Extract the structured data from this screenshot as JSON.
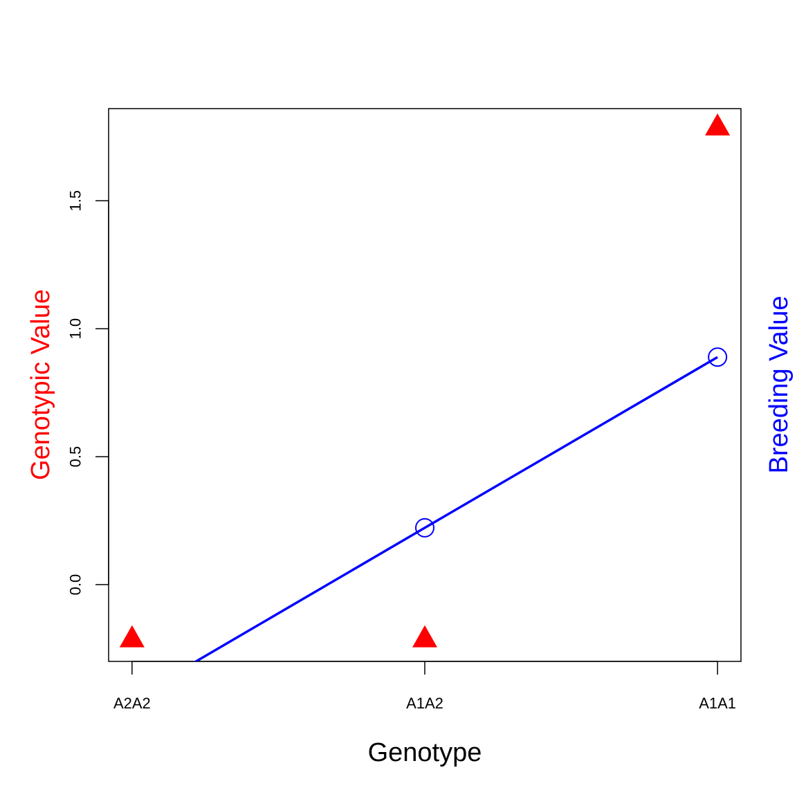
{
  "chart_data": {
    "type": "scatter",
    "xlabel": "Genotype",
    "ylabel_left": "Genotypic Value",
    "ylabel_right": "Breeding Value",
    "categories": [
      "A2A2",
      "A1A2",
      "A1A1"
    ],
    "x_range": [
      0.92,
      3.08
    ],
    "ylim": [
      -0.3,
      1.86
    ],
    "y_ticks": [
      0.0,
      0.5,
      1.0,
      1.5
    ],
    "y_tick_labels": [
      "0.0",
      "0.5",
      "1.0",
      "1.5"
    ],
    "grid": false,
    "legend": "none",
    "series": [
      {
        "key": "genotypic",
        "marker": "filled-triangle",
        "x": [
          1,
          2,
          3
        ],
        "values": [
          -0.21,
          -0.21,
          1.79
        ]
      },
      {
        "key": "breeding",
        "marker": "open-circle",
        "line": true,
        "x": [
          1,
          2,
          3
        ],
        "values": [
          -0.446,
          0.222,
          0.889
        ]
      }
    ],
    "colors": {
      "genotypic": "#ff0000",
      "breeding": "#0000ff",
      "axis": "#000000"
    }
  }
}
